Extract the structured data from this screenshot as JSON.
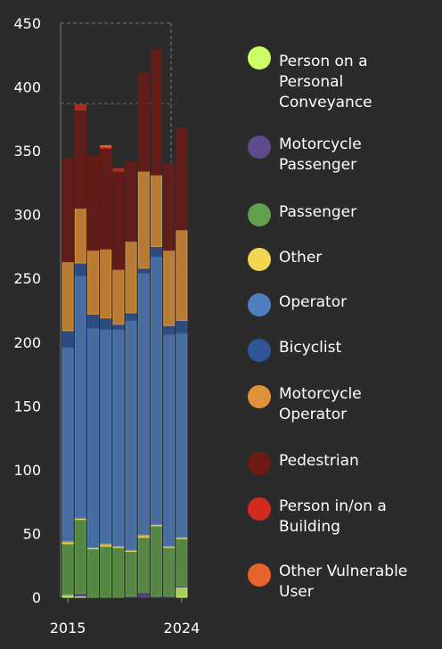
{
  "chart_data": {
    "type": "bar",
    "stacked": true,
    "categories": [
      "2015",
      "2016",
      "2017",
      "2018",
      "2019",
      "2020",
      "2021",
      "2022",
      "2023",
      "2024"
    ],
    "x_tick_labels": [
      "2015",
      "2024"
    ],
    "ylim": [
      0,
      450
    ],
    "y_ticks": [
      "0",
      "50",
      "100",
      "150",
      "200",
      "250",
      "300",
      "350",
      "400",
      "450"
    ],
    "grid": false,
    "legend_position": "right",
    "series": [
      {
        "name": "Person on a Personal Conveyance",
        "color": "#ccff66",
        "values": [
          2,
          1,
          0,
          0,
          0,
          0,
          0,
          0,
          0,
          8
        ]
      },
      {
        "name": "Motorcycle Passenger",
        "color": "#5e4a8c",
        "values": [
          0,
          2,
          0,
          0,
          0,
          1,
          4,
          1,
          1,
          1
        ]
      },
      {
        "name": "Passenger",
        "color": "#63a04b",
        "values": [
          40,
          58,
          38,
          40,
          39,
          35,
          43,
          55,
          38,
          37
        ]
      },
      {
        "name": "Other",
        "color": "#f2d651",
        "values": [
          2,
          1,
          1,
          2,
          1,
          1,
          2,
          1,
          1,
          1
        ]
      },
      {
        "name": "Operator",
        "color": "#4f7fbf",
        "values": [
          152,
          190,
          172,
          168,
          170,
          180,
          205,
          210,
          166,
          160
        ]
      },
      {
        "name": "Bicyclist",
        "color": "#2f5597",
        "values": [
          13,
          10,
          11,
          9,
          4,
          6,
          4,
          8,
          7,
          10
        ]
      },
      {
        "name": "Motorcycle Operator",
        "color": "#e0923a",
        "values": [
          54,
          43,
          50,
          54,
          43,
          56,
          76,
          56,
          59,
          71
        ]
      },
      {
        "name": "Pedestrian",
        "color": "#701a14",
        "values": [
          81,
          77,
          74,
          79,
          77,
          62,
          77,
          98,
          68,
          80
        ]
      },
      {
        "name": "Person in/on a Building",
        "color": "#d12a1f",
        "values": [
          0,
          4,
          0,
          1,
          2,
          0,
          0,
          0,
          0,
          0
        ]
      },
      {
        "name": "Other Vulnerable User",
        "color": "#e8632c",
        "values": [
          0,
          0,
          0,
          1,
          0,
          0,
          0,
          0,
          0,
          0
        ]
      }
    ]
  }
}
